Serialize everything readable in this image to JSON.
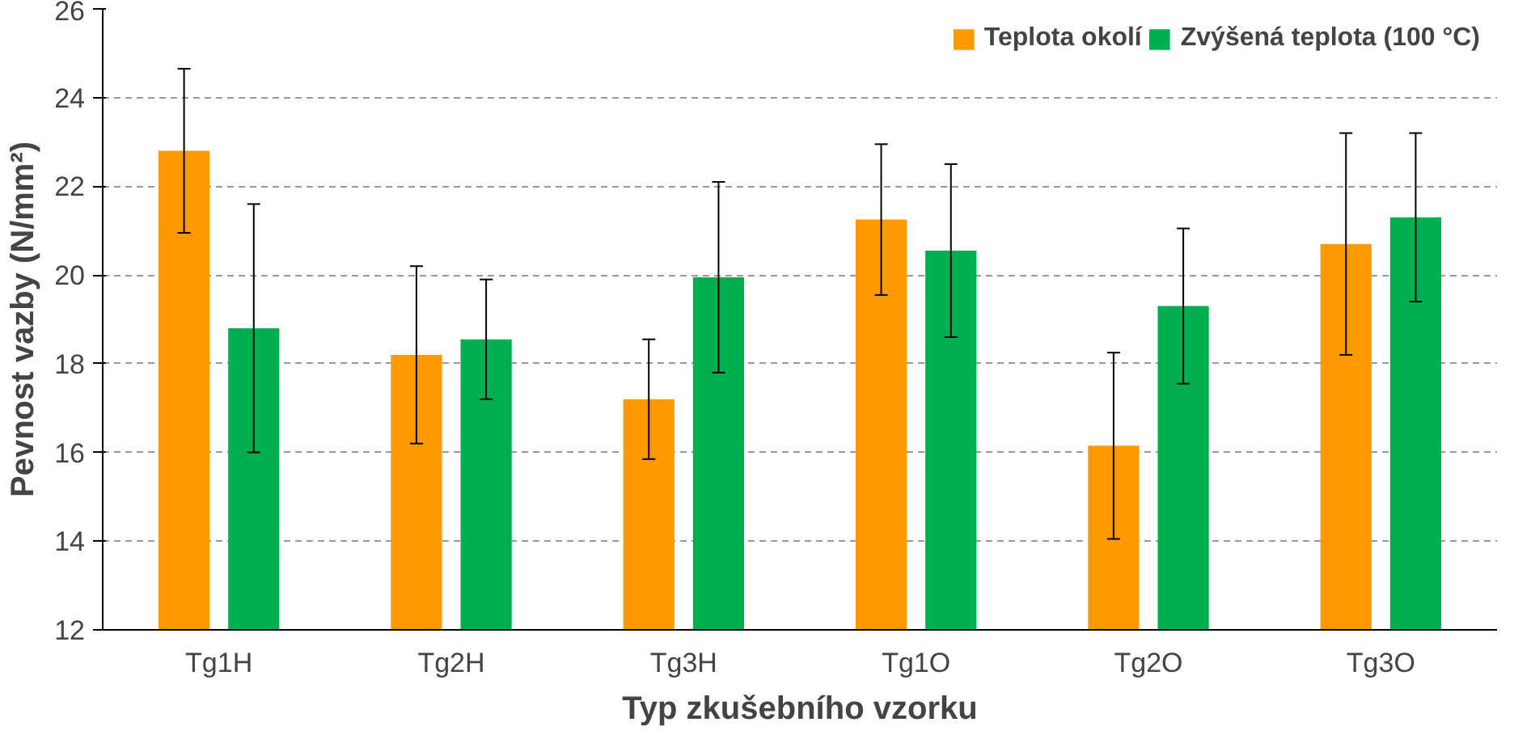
{
  "chart_data": {
    "type": "bar",
    "xlabel": "Typ zkušebního vzorku",
    "ylabel": "Pevnost vazby (N/mm²)",
    "categories": [
      "Tg1H",
      "Tg2H",
      "Tg3H",
      "Tg1O",
      "Tg2O",
      "Tg3O"
    ],
    "series": [
      {
        "name": "Teplota okolí",
        "color": "#ff9900",
        "values": [
          22.8,
          18.2,
          17.2,
          21.25,
          16.15,
          20.7
        ],
        "errors": [
          1.85,
          2.0,
          1.35,
          1.7,
          2.1,
          2.5
        ]
      },
      {
        "name": "Zvýšená teplota (100 °C)",
        "color": "#00b050",
        "values": [
          18.8,
          18.55,
          19.95,
          20.55,
          19.3,
          21.3
        ],
        "errors": [
          2.8,
          1.35,
          2.15,
          1.95,
          1.75,
          1.9
        ]
      }
    ],
    "ylim": [
      12,
      26
    ],
    "yticks": [
      12,
      14,
      16,
      18,
      20,
      22,
      24,
      26
    ],
    "grid": "y",
    "line_style": "dashed",
    "legend": "top right"
  }
}
